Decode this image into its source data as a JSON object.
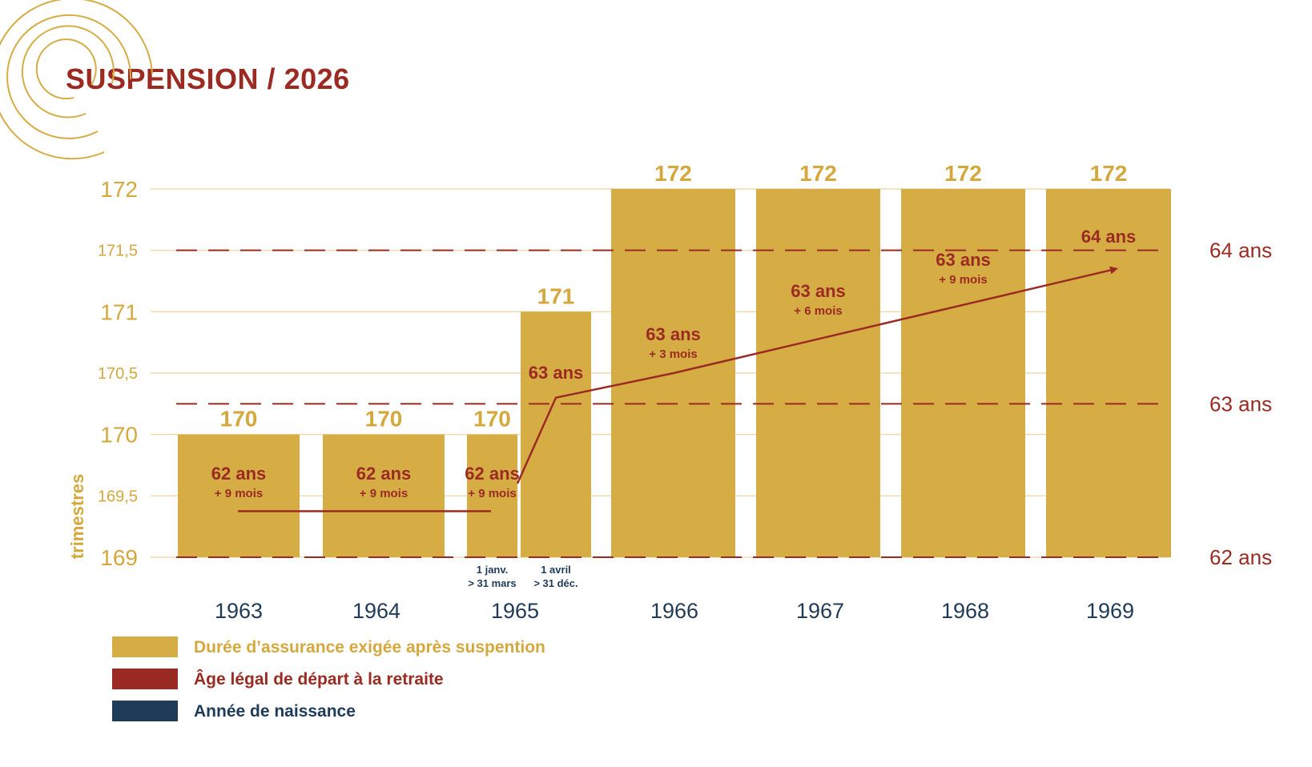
{
  "title": "SUSPENSION / 2026",
  "colors": {
    "gold": "#d6ad45",
    "gold_text": "#d4a83c",
    "red": "#9b2b22",
    "navy": "#1f3b5a",
    "grid": "#ecdcae"
  },
  "chart_data": {
    "type": "bar",
    "title": "SUSPENSION / 2026",
    "ylabel": "trimestres",
    "ylim": [
      169,
      172
    ],
    "yticks": [
      "169",
      "169,5",
      "170",
      "170,5",
      "171",
      "171,5",
      "172"
    ],
    "ytick_values": [
      169,
      169.5,
      170,
      170.5,
      171,
      171.5,
      172
    ],
    "categories": [
      "1963",
      "1964",
      "1965",
      "1965",
      "1966",
      "1967",
      "1968",
      "1969"
    ],
    "bars": [
      {
        "year": "1963",
        "value": 170,
        "value_label": "170",
        "age": "62 ans",
        "extra": "+ 9 mois"
      },
      {
        "year": "1964",
        "value": 170,
        "value_label": "170",
        "age": "62 ans",
        "extra": "+ 9 mois"
      },
      {
        "year": "1965",
        "value": 170,
        "value_label": "170",
        "age": "62 ans",
        "extra": "+ 9 mois",
        "sub": [
          "1 janv.",
          "> 31 mars"
        ]
      },
      {
        "year": "1965",
        "value": 171,
        "value_label": "171",
        "age": "63 ans",
        "extra": "",
        "sub": [
          "1 avril",
          "> 31 déc."
        ]
      },
      {
        "year": "1966",
        "value": 172,
        "value_label": "172",
        "age": "63 ans",
        "extra": "+ 3 mois"
      },
      {
        "year": "1967",
        "value": 172,
        "value_label": "172",
        "age": "63 ans",
        "extra": "+ 6 mois"
      },
      {
        "year": "1968",
        "value": 172,
        "value_label": "172",
        "age": "63 ans",
        "extra": "+ 9 mois"
      },
      {
        "year": "1969",
        "value": 172,
        "value_label": "172",
        "age": "64 ans",
        "extra": ""
      }
    ],
    "year_labels": [
      "1963",
      "1964",
      "1965",
      "1966",
      "1967",
      "1968",
      "1969"
    ],
    "age_scale": {
      "labels": [
        "64 ans",
        "63 ans",
        "62 ans"
      ],
      "values": [
        171.5,
        170.25,
        169
      ]
    },
    "legal_age_line": [
      {
        "bar": 0,
        "value": 169.375
      },
      {
        "bar": 2,
        "value": 169.375
      },
      {
        "bar": 3,
        "value": 170.3
      },
      {
        "bar": 4,
        "value": 170.5
      },
      {
        "bar": 7,
        "value": 171.35
      }
    ]
  },
  "legend": [
    {
      "label": "Durée d’assurance exigée après suspention",
      "color": "#d6ad45",
      "text_color": "#d4a83c"
    },
    {
      "label": "Âge légal de départ à la retraite",
      "color": "#9b2b22",
      "text_color": "#9b2b22"
    },
    {
      "label": "Année de naissance",
      "color": "#1f3b5a",
      "text_color": "#1f3b5a"
    }
  ]
}
